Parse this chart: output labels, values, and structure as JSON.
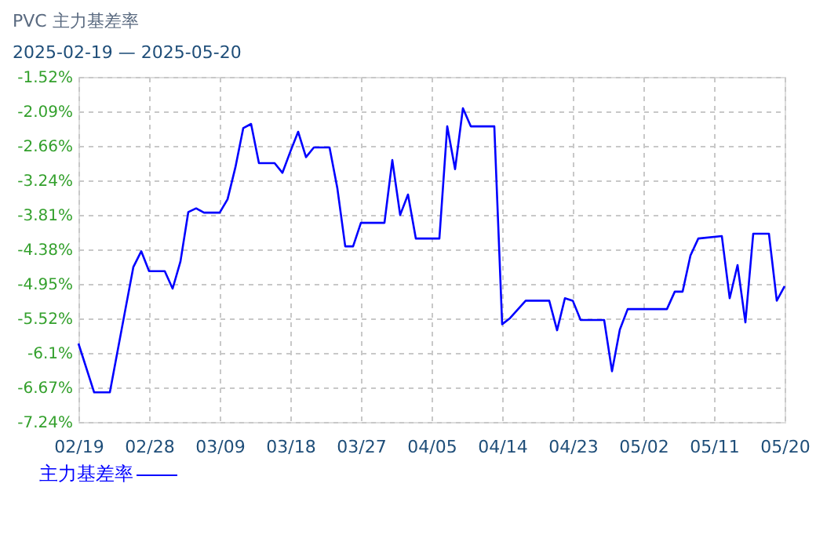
{
  "chart_data": {
    "type": "line",
    "title": "PVC 主力基差率",
    "subtitle": "2025-02-19 — 2025-05-20",
    "x": [
      "2025-02-19",
      "2025-02-21",
      "2025-02-23",
      "2025-02-25",
      "2025-02-26",
      "2025-02-27",
      "2025-02-28",
      "2025-03-02",
      "2025-03-03",
      "2025-03-04",
      "2025-03-05",
      "2025-03-06",
      "2025-03-07",
      "2025-03-09",
      "2025-03-10",
      "2025-03-11",
      "2025-03-12",
      "2025-03-13",
      "2025-03-14",
      "2025-03-16",
      "2025-03-17",
      "2025-03-18",
      "2025-03-19",
      "2025-03-20",
      "2025-03-21",
      "2025-03-23",
      "2025-03-24",
      "2025-03-25",
      "2025-03-26",
      "2025-03-27",
      "2025-03-30",
      "2025-03-31",
      "2025-04-01",
      "2025-04-02",
      "2025-04-03",
      "2025-04-06",
      "2025-04-07",
      "2025-04-08",
      "2025-04-09",
      "2025-04-10",
      "2025-04-13",
      "2025-04-14",
      "2025-04-15",
      "2025-04-17",
      "2025-04-20",
      "2025-04-21",
      "2025-04-22",
      "2025-04-23",
      "2025-04-24",
      "2025-04-27",
      "2025-04-28",
      "2025-04-29",
      "2025-04-30",
      "2025-05-05",
      "2025-05-06",
      "2025-05-07",
      "2025-05-08",
      "2025-05-09",
      "2025-05-12",
      "2025-05-13",
      "2025-05-14",
      "2025-05-15",
      "2025-05-16",
      "2025-05-18",
      "2025-05-19",
      "2025-05-20"
    ],
    "series": [
      {
        "name": "主力基差率",
        "color": "#0000ff",
        "values": [
          -5.94,
          -6.75,
          -6.75,
          -5.36,
          -4.67,
          -4.41,
          -4.74,
          -4.74,
          -5.03,
          -4.58,
          -3.76,
          -3.7,
          -3.77,
          -3.77,
          -3.55,
          -3.02,
          -2.37,
          -2.3,
          -2.95,
          -2.95,
          -3.11,
          -2.76,
          -2.43,
          -2.85,
          -2.69,
          -2.69,
          -3.37,
          -4.33,
          -4.33,
          -3.94,
          -3.94,
          -2.9,
          -3.81,
          -3.47,
          -4.2,
          -4.2,
          -2.34,
          -3.05,
          -2.04,
          -2.34,
          -2.34,
          -5.62,
          -5.52,
          -5.23,
          -5.23,
          -5.72,
          -5.19,
          -5.23,
          -5.55,
          -5.55,
          -6.4,
          -5.71,
          -5.37,
          -5.37,
          -5.08,
          -5.08,
          -4.48,
          -4.2,
          -4.16,
          -5.19,
          -4.64,
          -5.59,
          -4.12,
          -4.12,
          -5.23,
          -4.99
        ]
      }
    ],
    "xlim": [
      "2025-02-19",
      "2025-05-20"
    ],
    "xticks": [
      {
        "value": "2025-02-19",
        "label": "02/19"
      },
      {
        "value": "2025-02-28",
        "label": "02/28"
      },
      {
        "value": "2025-03-09",
        "label": "03/09"
      },
      {
        "value": "2025-03-18",
        "label": "03/18"
      },
      {
        "value": "2025-03-27",
        "label": "03/27"
      },
      {
        "value": "2025-04-05",
        "label": "04/05"
      },
      {
        "value": "2025-04-14",
        "label": "04/14"
      },
      {
        "value": "2025-04-23",
        "label": "04/23"
      },
      {
        "value": "2025-05-02",
        "label": "05/02"
      },
      {
        "value": "2025-05-11",
        "label": "05/11"
      },
      {
        "value": "2025-05-20",
        "label": "05/20"
      }
    ],
    "ylim": [
      -7.24,
      -1.52
    ],
    "yticks": [
      {
        "value": -7.24,
        "label": "-7.24%"
      },
      {
        "value": -6.67,
        "label": "-6.67%"
      },
      {
        "value": -6.1,
        "label": "-6.1%"
      },
      {
        "value": -5.52,
        "label": "-5.52%"
      },
      {
        "value": -4.95,
        "label": "-4.95%"
      },
      {
        "value": -4.38,
        "label": "-4.38%"
      },
      {
        "value": -3.81,
        "label": "-3.81%"
      },
      {
        "value": -3.24,
        "label": "-3.24%"
      },
      {
        "value": -2.66,
        "label": "-2.66%"
      },
      {
        "value": -2.09,
        "label": "-2.09%"
      },
      {
        "value": -1.52,
        "label": "-1.52%"
      }
    ],
    "grid": true,
    "legend": "bottom left",
    "marker": "none",
    "line_style": "solid"
  }
}
